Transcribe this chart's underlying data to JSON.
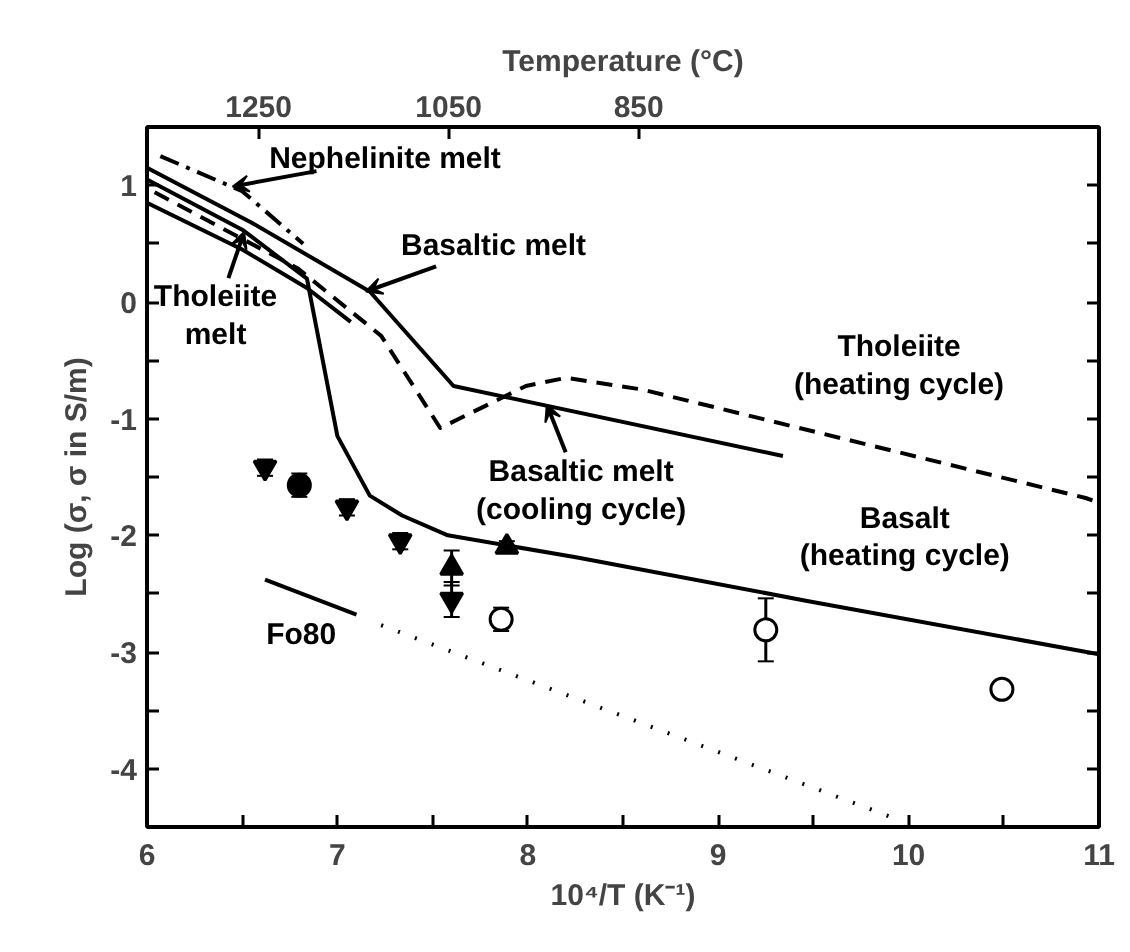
{
  "chart_data": {
    "type": "line",
    "xlabel": "10⁴/T (K⁻¹)",
    "ylabel": "Log (σ, σ in S/m)",
    "x2label": "Temperature (°C)",
    "xlim": [
      6,
      11
    ],
    "ylim": [
      -4.5,
      1.5
    ],
    "xticks": [
      6,
      {
        "value": 6.5,
        "label": null
      },
      7,
      {
        "value": 7.5,
        "label": null
      },
      8,
      {
        "value": 8.5,
        "label": null
      },
      9,
      {
        "value": 9.5,
        "label": null
      },
      10,
      {
        "value": 10.5,
        "label": null
      },
      11
    ],
    "yticks": [
      -4,
      {
        "value": -3.5,
        "label": null
      },
      -3,
      {
        "value": -2.5,
        "label": null
      },
      -2,
      {
        "value": -1.5,
        "label": null
      },
      -1,
      {
        "value": -0.5,
        "label": null
      },
      0,
      {
        "value": 0.5,
        "label": null
      },
      1
    ],
    "x2lim": [
      1367.5,
      365.5
    ],
    "x2ticks": [
      1250,
      1050,
      850
    ],
    "grid": false,
    "series": [
      {
        "line_style": "solid",
        "color": "#000000",
        "x": [
          6,
          6.55,
          7.17,
          7.61,
          9.34
        ],
        "values": [
          1.15,
          0.68,
          0.09,
          -0.72,
          -1.32
        ]
      },
      {
        "line_style": "solid",
        "color": "#000000",
        "x": [
          6,
          6.5,
          6.84,
          7.0,
          7.17,
          7.34,
          7.58,
          8.26,
          9.46,
          11
        ],
        "values": [
          1.05,
          0.62,
          0.2,
          -1.15,
          -1.66,
          -1.83,
          -2.0,
          -2.19,
          -2.56,
          -3.02
        ]
      },
      {
        "line_style": "solid",
        "color": "#000000",
        "x": [
          6,
          6.5,
          6.84,
          7.07
        ],
        "values": [
          0.85,
          0.45,
          0.12,
          -0.17
        ]
      },
      {
        "line_style": "dashed",
        "color": "#000000",
        "x": [
          6.04,
          6.79,
          7.23,
          7.54,
          7.99,
          8.2,
          8.6,
          10.93,
          11
        ],
        "values": [
          0.94,
          0.29,
          -0.29,
          -1.08,
          -0.72,
          -0.65,
          -0.75,
          -1.68,
          -1.72
        ]
      },
      {
        "line_style": "dashdot",
        "color": "#000000",
        "x": [
          6.07,
          6.5,
          6.82
        ],
        "values": [
          1.25,
          0.95,
          0.5
        ]
      },
      {
        "line_style": "solid",
        "color": "#000000",
        "x": [
          6.62,
          7.1
        ],
        "values": [
          -2.38,
          -2.68
        ]
      },
      {
        "line_style": "dotted",
        "color": "#000000",
        "x": [
          7.23,
          9.95
        ],
        "values": [
          -2.77,
          -4.44
        ]
      },
      {
        "type": "scatter",
        "color": "#000000",
        "x": [
          6.62,
          7.05,
          7.33,
          7.6
        ],
        "values": [
          -1.42,
          -1.76,
          -2.05,
          -2.55
        ],
        "errors": [
          0.07,
          0.07,
          0.07,
          0.15
        ]
      },
      {
        "type": "scatter",
        "marker": "circle",
        "color": "#000000",
        "x": [
          6.8
        ],
        "values": [
          -1.57
        ],
        "errors": [
          0.1
        ]
      },
      {
        "type": "scatter",
        "marker": "triangle",
        "color": "#000000",
        "x": [
          7.6,
          7.89
        ],
        "values": [
          -2.28,
          -2.1
        ],
        "errors": [
          0.15,
          0.05
        ]
      },
      {
        "type": "scatter",
        "marker": "circle_open",
        "color": "#000000",
        "x": [
          7.86,
          9.25,
          10.49
        ],
        "values": [
          -2.72,
          -2.81,
          -3.32
        ],
        "errors": [
          0.1,
          0.27,
          0.07
        ]
      }
    ],
    "annotations": [
      {
        "text": "Nephelinite melt",
        "x": 6.45,
        "y": 0.99
      },
      {
        "text": "Basaltic melt",
        "x": 7.15,
        "y": 0.09
      },
      {
        "text": "Tholeiite\nmelt",
        "x": 6.51,
        "y": 0.6
      },
      {
        "text": "Basaltic melt\n(cooling cycle)",
        "x": 8.1,
        "y": -0.88
      },
      "Tholeiite\n(heating cycle)",
      "Basalt\n(heating cycle)",
      "Fo80"
    ]
  }
}
